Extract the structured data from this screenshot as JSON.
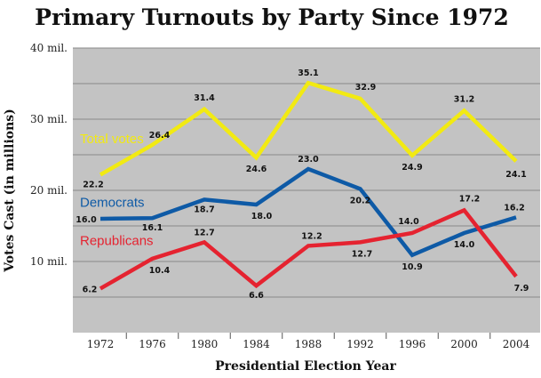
{
  "chart_data": {
    "type": "line",
    "title": "Primary Turnouts by Party Since 1972",
    "xlabel": "Presidential Election Year",
    "ylabel": "Votes Cast (in millions)",
    "ylim": [
      0,
      40
    ],
    "yticks": [
      {
        "value": 10,
        "label": "10 mil."
      },
      {
        "value": 20,
        "label": "20 mil."
      },
      {
        "value": 30,
        "label": "30 mil."
      },
      {
        "value": 40,
        "label": "40 mil."
      }
    ],
    "categories": [
      "1972",
      "1976",
      "1980",
      "1984",
      "1988",
      "1992",
      "1996",
      "2000",
      "2004"
    ],
    "grid": true,
    "colors": {
      "background": "#c3c3c3",
      "grid": "#8a8a8a",
      "total": "#f2ea12",
      "democrats": "#0e5aa6",
      "republicans": "#e52330"
    },
    "series": [
      {
        "key": "total",
        "name": "Total votes",
        "values": [
          22.2,
          26.4,
          31.4,
          24.6,
          35.1,
          32.9,
          24.9,
          31.2,
          24.1
        ],
        "labels": [
          "22.2",
          "26.4",
          "31.4",
          "24.6",
          "35.1",
          "32.9",
          "24.9",
          "31.2",
          "24.1"
        ]
      },
      {
        "key": "democrats",
        "name": "Democrats",
        "values": [
          16.0,
          16.1,
          18.7,
          18.0,
          23.0,
          20.2,
          10.9,
          14.0,
          16.2
        ],
        "labels": [
          "16.0",
          "16.1",
          "18.7",
          "18.0",
          "23.0",
          "20.2",
          "10.9",
          "14.0",
          "16.2"
        ]
      },
      {
        "key": "republicans",
        "name": "Republicans",
        "values": [
          6.2,
          10.4,
          12.7,
          6.6,
          12.2,
          12.7,
          14.0,
          17.2,
          7.9
        ],
        "labels": [
          "6.2",
          "10.4",
          "12.7",
          "6.6",
          "12.2",
          "12.7",
          "14.0",
          "17.2",
          "7.9"
        ]
      }
    ]
  }
}
